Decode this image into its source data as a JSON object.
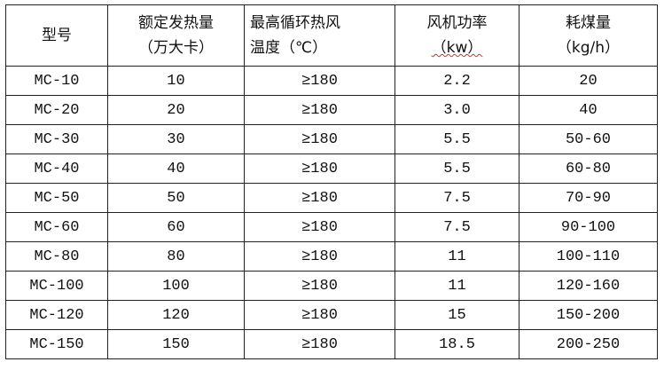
{
  "headers": [
    {
      "line1": "型号",
      "line2": ""
    },
    {
      "line1": "额定发热量",
      "line2": "（万大卡）"
    },
    {
      "line1": "最高循环热风",
      "line2": "温度（℃）"
    },
    {
      "line1": "风机功率",
      "line2": "（kw）"
    },
    {
      "line1": "耗煤量",
      "line2": "（kg/h）"
    }
  ],
  "rows": [
    [
      "MC-10",
      "10",
      "≥180",
      "2.2",
      "20"
    ],
    [
      "MC-20",
      "20",
      "≥180",
      "3.0",
      "40"
    ],
    [
      "MC-30",
      "30",
      "≥180",
      "5.5",
      "50-60"
    ],
    [
      "MC-40",
      "40",
      "≥180",
      "5.5",
      "60-80"
    ],
    [
      "MC-50",
      "50",
      "≥180",
      "7.5",
      "70-90"
    ],
    [
      "MC-60",
      "60",
      "≥180",
      "7.5",
      "90-100"
    ],
    [
      "MC-80",
      "80",
      "≥180",
      "11",
      "100-110"
    ],
    [
      "MC-100",
      "100",
      "≥180",
      "11",
      "120-160"
    ],
    [
      "MC-120",
      "120",
      "≥180",
      "15",
      "150-200"
    ],
    [
      "MC-150",
      "150",
      "≥180",
      "18.5",
      "200-250"
    ]
  ]
}
